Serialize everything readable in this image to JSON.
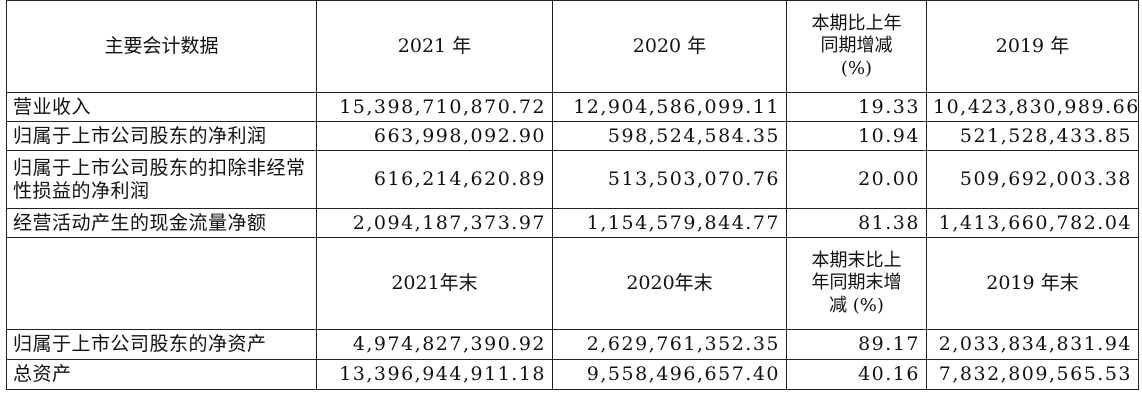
{
  "header1": {
    "label": "主要会计数据",
    "col1": "2021 年",
    "col2": "2020 年",
    "col3_lines": [
      "本期比上年",
      "同期增减",
      "(%)"
    ],
    "col4": "2019 年"
  },
  "rows1": [
    {
      "label": "营业收入",
      "v2021": "15,398,710,870.72",
      "v2020": "12,904,586,099.11",
      "chg": "19.33",
      "v2019": "10,423,830,989.66"
    },
    {
      "label": "归属于上市公司股东的净利润",
      "v2021": "663,998,092.90",
      "v2020": "598,524,584.35",
      "chg": "10.94",
      "v2019": "521,528,433.85"
    },
    {
      "label": "归属于上市公司股东的扣除非经常性损益的净利润",
      "v2021": "616,214,620.89",
      "v2020": "513,503,070.76",
      "chg": "20.00",
      "v2019": "509,692,003.38"
    },
    {
      "label": "经营活动产生的现金流量净额",
      "v2021": "2,094,187,373.97",
      "v2020": "1,154,579,844.77",
      "chg": "81.38",
      "v2019": "1,413,660,782.04"
    }
  ],
  "header2": {
    "label": "",
    "col1": "2021年末",
    "col2": "2020年末",
    "col3_lines": [
      "本期末比上",
      "年同期末增",
      "减 (%)"
    ],
    "col4": "2019 年末"
  },
  "rows2": [
    {
      "label": "归属于上市公司股东的净资产",
      "v2021": "4,974,827,390.92",
      "v2020": "2,629,761,352.35",
      "chg": "89.17",
      "v2019": "2,033,834,831.94"
    },
    {
      "label": "总资产",
      "v2021": "13,396,944,911.18",
      "v2020": "9,558,496,657.40",
      "chg": "40.16",
      "v2019": "7,832,809,565.53"
    }
  ]
}
